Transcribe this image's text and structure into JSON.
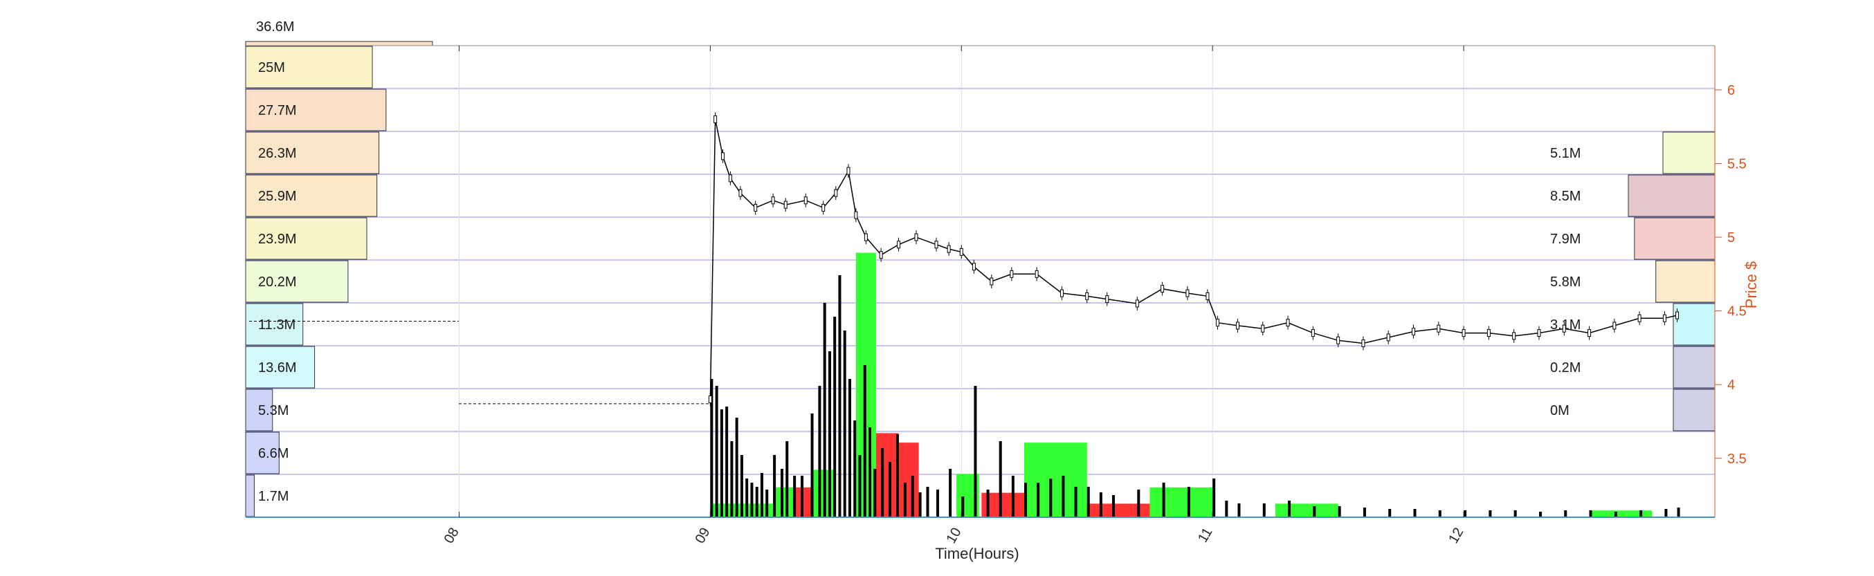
{
  "chart_data": {
    "type": "line",
    "xlabel": "Time(Hours)",
    "ylabel": "Price $",
    "x_ticks": [
      "08",
      "09",
      "10",
      "11",
      "12"
    ],
    "xlim": [
      7.15,
      13.0
    ],
    "y_ticks": [
      3.5,
      4,
      4.5,
      5,
      5.5,
      6
    ],
    "ylim": [
      3.1,
      6.3
    ],
    "grid": true,
    "volume_profile_left": {
      "top_label": "36.6M",
      "bins": [
        {
          "label": "25M",
          "value": 25,
          "color": "#fbf3c8"
        },
        {
          "label": "27.7M",
          "value": 27.7,
          "color": "#fbe0c8"
        },
        {
          "label": "26.3M",
          "value": 26.3,
          "color": "#fbe5c8"
        },
        {
          "label": "25.9M",
          "value": 25.9,
          "color": "#fbe8c8"
        },
        {
          "label": "23.9M",
          "value": 23.9,
          "color": "#f9f3c8"
        },
        {
          "label": "20.2M",
          "value": 20.2,
          "color": "#edfbd8"
        },
        {
          "label": "11.3M",
          "value": 11.3,
          "color": "#d3f7f7"
        },
        {
          "label": "13.6M",
          "value": 13.6,
          "color": "#d3fbfb"
        },
        {
          "label": "5.3M",
          "value": 5.3,
          "color": "#cdd3f7"
        },
        {
          "label": "6.6M",
          "value": 6.6,
          "color": "#cfd5fb"
        },
        {
          "label": "1.7M",
          "value": 1.7,
          "color": "#d0d3f7"
        }
      ]
    },
    "volume_profile_right": [
      {
        "label": "5.1M",
        "value": 5.1,
        "color": "#f7fbd3"
      },
      {
        "label": "8.5M",
        "value": 8.5,
        "color": "#e5c6cc"
      },
      {
        "label": "7.9M",
        "value": 7.9,
        "color": "#f3cccc"
      },
      {
        "label": "5.8M",
        "value": 5.8,
        "color": "#fbebc8"
      },
      {
        "label": "3.1M",
        "value": 3.1,
        "color": "#c8f9fb"
      },
      {
        "label": "0.2M",
        "value": 0.2,
        "color": "#cfcfe5"
      },
      {
        "label": "0M",
        "value": 0,
        "color": "#cfcfe5"
      }
    ],
    "price_series": {
      "x": [
        9.0,
        9.02,
        9.05,
        9.08,
        9.12,
        9.18,
        9.25,
        9.3,
        9.38,
        9.45,
        9.5,
        9.55,
        9.58,
        9.62,
        9.68,
        9.75,
        9.82,
        9.9,
        9.95,
        10.0,
        10.05,
        10.12,
        10.2,
        10.3,
        10.4,
        10.5,
        10.58,
        10.7,
        10.8,
        10.9,
        10.98,
        11.02,
        11.1,
        11.2,
        11.3,
        11.4,
        11.5,
        11.6,
        11.7,
        11.8,
        11.9,
        12.0,
        12.1,
        12.2,
        12.3,
        12.4,
        12.5,
        12.6,
        12.7,
        12.8,
        12.85
      ],
      "y": [
        3.9,
        5.8,
        5.55,
        5.4,
        5.3,
        5.2,
        5.25,
        5.22,
        5.25,
        5.2,
        5.3,
        5.45,
        5.15,
        5.0,
        4.88,
        4.95,
        5.0,
        4.95,
        4.92,
        4.9,
        4.8,
        4.7,
        4.75,
        4.75,
        4.62,
        4.6,
        4.58,
        4.55,
        4.65,
        4.62,
        4.6,
        4.42,
        4.4,
        4.38,
        4.42,
        4.35,
        4.3,
        4.28,
        4.32,
        4.36,
        4.38,
        4.35,
        4.35,
        4.33,
        4.35,
        4.38,
        4.35,
        4.4,
        4.45,
        4.45,
        4.47
      ]
    },
    "prev_close": 3.87,
    "current_price": 4.43,
    "volume_bars": {
      "x": [
        9.0,
        9.02,
        9.04,
        9.06,
        9.08,
        9.1,
        9.12,
        9.14,
        9.16,
        9.18,
        9.2,
        9.22,
        9.25,
        9.28,
        9.3,
        9.33,
        9.36,
        9.4,
        9.43,
        9.45,
        9.47,
        9.49,
        9.51,
        9.53,
        9.55,
        9.57,
        9.59,
        9.61,
        9.63,
        9.65,
        9.68,
        9.71,
        9.74,
        9.77,
        9.8,
        9.83,
        9.86,
        9.9,
        9.95,
        10.0,
        10.05,
        10.1,
        10.15,
        10.2,
        10.25,
        10.3,
        10.35,
        10.4,
        10.45,
        10.5,
        10.55,
        10.6,
        10.7,
        10.8,
        10.9,
        11.0,
        11.05,
        11.1,
        11.2,
        11.3,
        11.4,
        11.5,
        11.6,
        11.7,
        11.8,
        11.9,
        12.0,
        12.1,
        12.2,
        12.3,
        12.4,
        12.5,
        12.6,
        12.7,
        12.8,
        12.85
      ],
      "v": [
        1.0,
        0.95,
        0.78,
        0.8,
        0.55,
        0.72,
        0.45,
        0.28,
        0.25,
        0.22,
        0.32,
        0.2,
        0.45,
        0.35,
        0.55,
        0.3,
        0.3,
        0.75,
        0.95,
        1.55,
        1.2,
        1.45,
        1.75,
        1.35,
        1.0,
        0.7,
        0.45,
        1.1,
        0.65,
        0.35,
        0.5,
        0.4,
        0.6,
        0.25,
        0.3,
        0.18,
        0.22,
        0.2,
        0.35,
        0.15,
        0.95,
        0.2,
        0.55,
        0.3,
        0.25,
        0.25,
        0.28,
        0.3,
        0.22,
        0.22,
        0.18,
        0.16,
        0.2,
        0.25,
        0.22,
        0.28,
        0.12,
        0.1,
        0.1,
        0.12,
        0.08,
        0.08,
        0.07,
        0.06,
        0.06,
        0.05,
        0.05,
        0.05,
        0.05,
        0.04,
        0.05,
        0.05,
        0.04,
        0.05,
        0.06,
        0.07
      ]
    },
    "buy_sell_blocks": [
      {
        "x0": 9.0,
        "x1": 9.25,
        "v": 0.1,
        "side": "buy"
      },
      {
        "x0": 9.25,
        "x1": 9.33,
        "v": 0.22,
        "side": "buy"
      },
      {
        "x0": 9.33,
        "x1": 9.41,
        "v": 0.22,
        "side": "sell"
      },
      {
        "x0": 9.41,
        "x1": 9.5,
        "v": 0.35,
        "side": "buy"
      },
      {
        "x0": 9.58,
        "x1": 9.66,
        "v": 1.95,
        "side": "buy"
      },
      {
        "x0": 9.66,
        "x1": 9.75,
        "v": 0.62,
        "side": "sell"
      },
      {
        "x0": 9.75,
        "x1": 9.83,
        "v": 0.55,
        "side": "sell"
      },
      {
        "x0": 9.98,
        "x1": 10.07,
        "v": 0.32,
        "side": "buy"
      },
      {
        "x0": 10.08,
        "x1": 10.25,
        "v": 0.18,
        "side": "sell"
      },
      {
        "x0": 10.25,
        "x1": 10.5,
        "v": 0.55,
        "side": "buy"
      },
      {
        "x0": 10.5,
        "x1": 10.75,
        "v": 0.1,
        "side": "sell"
      },
      {
        "x0": 10.75,
        "x1": 11.0,
        "v": 0.22,
        "side": "buy"
      },
      {
        "x0": 11.25,
        "x1": 11.5,
        "v": 0.1,
        "side": "buy"
      },
      {
        "x0": 12.5,
        "x1": 12.75,
        "v": 0.05,
        "side": "buy"
      }
    ]
  },
  "colors": {
    "candle": "#000000",
    "buy": "#33ff33",
    "sell": "#ff3333",
    "grid": "#0000cc",
    "price_axis": "#d95319"
  }
}
